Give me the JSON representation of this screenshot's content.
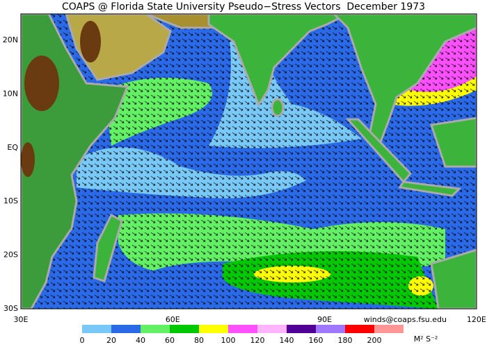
{
  "title": "COAPS @ Florida State University Pseudo−Stress Vectors  December 1973",
  "lat_labels": [
    "20N",
    "10N",
    "EQ",
    "10S",
    "20S",
    "30S"
  ],
  "lon_labels": [
    "30E",
    "60E",
    "90E",
    "120E"
  ],
  "contact": "winds@coaps.fsu.edu",
  "colorbar": {
    "colors": [
      "#78c8f8",
      "#2a6ae8",
      "#64f064",
      "#00c800",
      "#ffff00",
      "#ff50ff",
      "#ffb4ff",
      "#500096",
      "#a078ff",
      "#ff0000",
      "#ff9696"
    ],
    "ticks": [
      0,
      20,
      40,
      60,
      80,
      100,
      120,
      140,
      160,
      180,
      200
    ],
    "unit": "M² S⁻²"
  }
}
